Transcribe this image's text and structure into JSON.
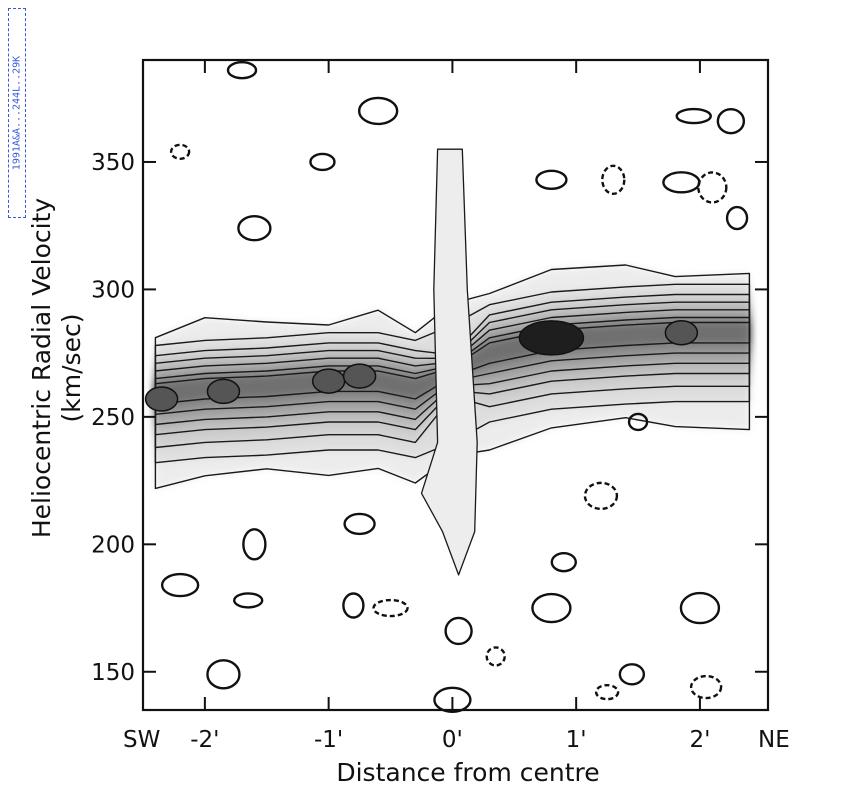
{
  "stamp": "1991A&A...244L..29K",
  "chart_data": {
    "type": "contour",
    "title": "",
    "xlabel": "Distance from centre",
    "ylabel_line1": "Heliocentric Radial Velocity",
    "ylabel_line2": "(km/sec)",
    "x_range_arcmin": [
      -2.5,
      2.55
    ],
    "y_range_kms": [
      135,
      390
    ],
    "x_ticks": [
      {
        "value": -2,
        "label": "-2'"
      },
      {
        "value": -1,
        "label": "-1'"
      },
      {
        "value": 0,
        "label": "0'"
      },
      {
        "value": 1,
        "label": "1'"
      },
      {
        "value": 2,
        "label": "2'"
      }
    ],
    "x_end_labels": {
      "left": "SW",
      "right": "NE"
    },
    "y_ticks": [
      {
        "value": 150,
        "label": "150"
      },
      {
        "value": 200,
        "label": "200"
      },
      {
        "value": 250,
        "label": "250"
      },
      {
        "value": 300,
        "label": "300"
      },
      {
        "value": 350,
        "label": "350"
      }
    ],
    "grid": false,
    "emission_ridge": [
      {
        "x": -2.4,
        "v": 260
      },
      {
        "x": -2.0,
        "v": 262
      },
      {
        "x": -1.5,
        "v": 263
      },
      {
        "x": -1.0,
        "v": 265
      },
      {
        "x": -0.6,
        "v": 265
      },
      {
        "x": -0.3,
        "v": 262
      },
      {
        "x": 0.0,
        "v": 268
      },
      {
        "x": 0.3,
        "v": 276
      },
      {
        "x": 0.8,
        "v": 281
      },
      {
        "x": 1.4,
        "v": 283
      },
      {
        "x": 1.8,
        "v": 284
      },
      {
        "x": 2.4,
        "v": 284
      }
    ],
    "peaks": [
      {
        "x": -2.35,
        "v": 257
      },
      {
        "x": -1.85,
        "v": 260
      },
      {
        "x": -1.0,
        "v": 264
      },
      {
        "x": -0.75,
        "v": 266
      },
      {
        "x": 0.8,
        "v": 281
      },
      {
        "x": 1.85,
        "v": 283
      }
    ],
    "noise_islands": [
      {
        "x": -2.2,
        "v": 354,
        "dashed": true
      },
      {
        "x": -1.6,
        "v": 324,
        "dashed": false
      },
      {
        "x": -1.05,
        "v": 350,
        "dashed": false
      },
      {
        "x": -0.6,
        "v": 370,
        "dashed": false
      },
      {
        "x": 0.8,
        "v": 343,
        "dashed": false
      },
      {
        "x": 1.3,
        "v": 343,
        "dashed": true
      },
      {
        "x": 1.85,
        "v": 342,
        "dashed": false
      },
      {
        "x": 2.1,
        "v": 340,
        "dashed": true
      },
      {
        "x": 2.3,
        "v": 328,
        "dashed": false
      },
      {
        "x": 1.95,
        "v": 368,
        "dashed": false
      },
      {
        "x": 2.25,
        "v": 366,
        "dashed": false
      },
      {
        "x": 1.5,
        "v": 248,
        "dashed": false
      },
      {
        "x": 1.2,
        "v": 219,
        "dashed": true
      },
      {
        "x": 0.9,
        "v": 193,
        "dashed": false
      },
      {
        "x": 0.8,
        "v": 175,
        "dashed": false
      },
      {
        "x": -0.75,
        "v": 208,
        "dashed": false
      },
      {
        "x": -1.6,
        "v": 200,
        "dashed": false
      },
      {
        "x": -2.2,
        "v": 184,
        "dashed": false
      },
      {
        "x": -1.65,
        "v": 178,
        "dashed": false
      },
      {
        "x": -0.8,
        "v": 176,
        "dashed": false
      },
      {
        "x": -0.5,
        "v": 175,
        "dashed": true
      },
      {
        "x": 0.05,
        "v": 166,
        "dashed": false
      },
      {
        "x": 0.35,
        "v": 156,
        "dashed": true
      },
      {
        "x": -1.85,
        "v": 149,
        "dashed": false
      },
      {
        "x": 1.45,
        "v": 149,
        "dashed": false
      },
      {
        "x": 2.0,
        "v": 175,
        "dashed": false
      },
      {
        "x": 2.05,
        "v": 144,
        "dashed": true
      },
      {
        "x": 1.25,
        "v": 142,
        "dashed": true
      },
      {
        "x": 0.0,
        "v": 139,
        "dashed": false
      },
      {
        "x": -1.7,
        "v": 386,
        "dashed": false
      }
    ]
  }
}
